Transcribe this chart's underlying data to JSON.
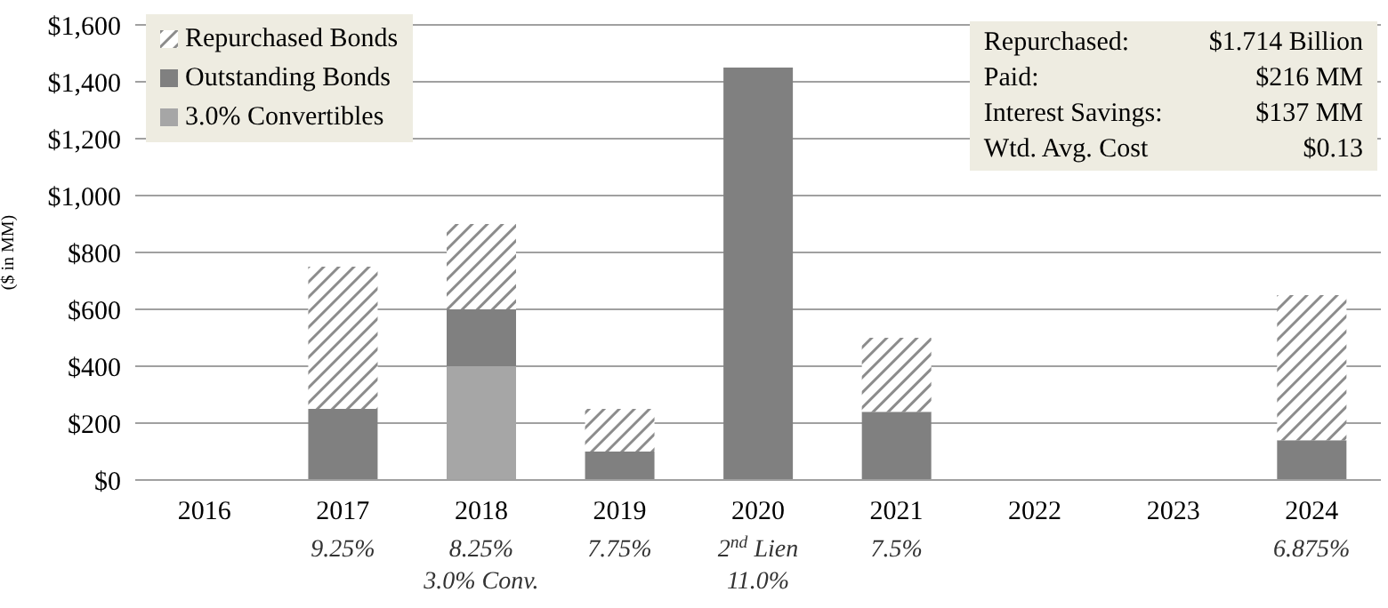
{
  "chart_data": {
    "type": "bar",
    "stacked": true,
    "ylabel": "($ in MM)",
    "categories": [
      "2016",
      "2017\n9.25%",
      "2018\n8.25%\n3.0% Conv.",
      "2019\n7.75%",
      "2020\n2$^{nd}$ Lien\n11.0%",
      "2021\n7.5%",
      "2022",
      "2023",
      "2024\n6.875%"
    ],
    "series": [
      {
        "name": "3.0% Convertibles",
        "color": "#a6a6a6",
        "values": [
          0,
          0,
          400,
          0,
          0,
          0,
          0,
          0,
          0
        ]
      },
      {
        "name": "Outstanding Bonds",
        "color": "#808080",
        "values": [
          0,
          250,
          200,
          100,
          1450,
          240,
          0,
          0,
          140
        ]
      },
      {
        "name": "Repurchased Bonds",
        "color": "#8c8c8c",
        "values": [
          0,
          500,
          300,
          150,
          0,
          260,
          0,
          0,
          510
        ]
      }
    ],
    "ylim": [
      0,
      1600
    ],
    "yticks": [
      {
        "value": 0,
        "label": "$0"
      },
      {
        "value": 200,
        "label": "$200"
      },
      {
        "value": 400,
        "label": "$400"
      },
      {
        "value": 600,
        "label": "$600"
      },
      {
        "value": 800,
        "label": "$800"
      },
      {
        "value": 1000,
        "label": "$1,000"
      },
      {
        "value": 1200,
        "label": "$1,200"
      },
      {
        "value": 1400,
        "label": "$1,400"
      },
      {
        "value": 1600,
        "label": "$1,600"
      }
    ],
    "grid": "y",
    "legend": "top left",
    "annotations": [
      "Repurchased:",
      "$1.714 Billion",
      "Paid:",
      "$216 MM",
      "Interest Savings:",
      "$137 MM",
      "Wtd. Avg. Cost",
      "$0.13"
    ]
  }
}
